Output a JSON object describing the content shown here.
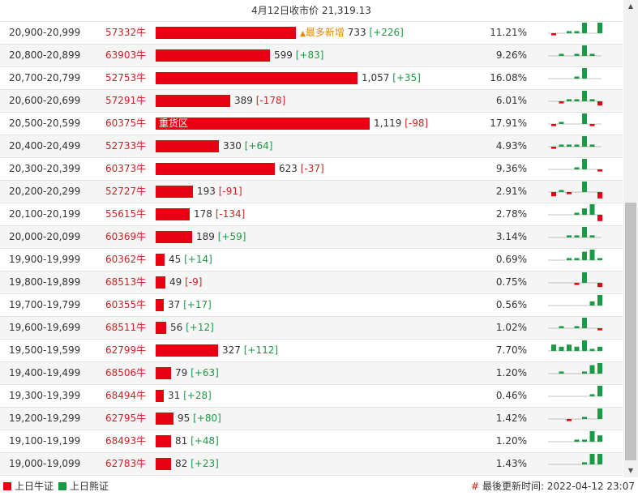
{
  "header": {
    "title": "4月12日收市价 21,319.13"
  },
  "colors": {
    "bull": "#e60012",
    "bear": "#1a9a45",
    "newest": "#e58a00"
  },
  "rows": [
    {
      "range": "20,900-20,999",
      "code": "57332牛",
      "value": 733,
      "value_text": "733",
      "change": "[+226]",
      "change_dir": "up",
      "pct": "11.21%",
      "tag": "最多新增",
      "tag_icon": "▲",
      "spark": [
        -1,
        0,
        1,
        1,
        5,
        0,
        5
      ]
    },
    {
      "range": "20,800-20,899",
      "code": "63903牛",
      "value": 599,
      "value_text": "599",
      "change": "[+83]",
      "change_dir": "up",
      "pct": "9.26%",
      "spark": [
        0,
        1,
        0,
        1,
        5,
        1,
        0
      ]
    },
    {
      "range": "20,700-20,799",
      "code": "52753牛",
      "value": 1057,
      "value_text": "1,057",
      "change": "[+35]",
      "change_dir": "up",
      "pct": "16.08%",
      "spark": [
        0,
        0,
        0,
        1,
        5,
        0,
        0
      ]
    },
    {
      "range": "20,600-20,699",
      "code": "57291牛",
      "value": 389,
      "value_text": "389",
      "change": "[-178]",
      "change_dir": "down",
      "pct": "6.01%",
      "spark": [
        0,
        -1,
        1,
        1,
        5,
        1,
        -2
      ]
    },
    {
      "range": "20,500-20,599",
      "code": "60375牛",
      "value": 1119,
      "value_text": "1,119",
      "change": "[-98]",
      "change_dir": "down",
      "pct": "17.91%",
      "inner_label": "重货区",
      "spark": [
        -1,
        1,
        0,
        0,
        5,
        -1,
        0
      ]
    },
    {
      "range": "20,400-20,499",
      "code": "52733牛",
      "value": 330,
      "value_text": "330",
      "change": "[+64]",
      "change_dir": "up",
      "pct": "4.93%",
      "spark": [
        -1,
        1,
        1,
        1,
        5,
        1,
        0
      ]
    },
    {
      "range": "20,300-20,399",
      "code": "60373牛",
      "value": 623,
      "value_text": "623",
      "change": "[-37]",
      "change_dir": "down",
      "pct": "9.36%",
      "spark": [
        0,
        0,
        0,
        1,
        5,
        0,
        -1
      ]
    },
    {
      "range": "20,200-20,299",
      "code": "52727牛",
      "value": 193,
      "value_text": "193",
      "change": "[-91]",
      "change_dir": "down",
      "pct": "2.91%",
      "spark": [
        -2,
        1,
        -1,
        0,
        5,
        0,
        -3
      ]
    },
    {
      "range": "20,100-20,199",
      "code": "55615牛",
      "value": 178,
      "value_text": "178",
      "change": "[-134]",
      "change_dir": "down",
      "pct": "2.78%",
      "spark": [
        0,
        0,
        0,
        1,
        3,
        5,
        -3
      ]
    },
    {
      "range": "20,000-20,099",
      "code": "60369牛",
      "value": 189,
      "value_text": "189",
      "change": "[+59]",
      "change_dir": "up",
      "pct": "3.14%",
      "spark": [
        0,
        0,
        1,
        1,
        5,
        1,
        0
      ]
    },
    {
      "range": "19,900-19,999",
      "code": "60362牛",
      "value": 45,
      "value_text": "45",
      "change": "[+14]",
      "change_dir": "up",
      "pct": "0.69%",
      "spark": [
        0,
        0,
        1,
        1,
        4,
        5,
        1
      ]
    },
    {
      "range": "19,800-19,899",
      "code": "68513牛",
      "value": 49,
      "value_text": "49",
      "change": "[-9]",
      "change_dir": "down",
      "pct": "0.75%",
      "spark": [
        0,
        0,
        0,
        -1,
        5,
        0,
        -2
      ]
    },
    {
      "range": "19,700-19,799",
      "code": "60355牛",
      "value": 37,
      "value_text": "37",
      "change": "[+17]",
      "change_dir": "up",
      "pct": "0.56%",
      "spark": [
        0,
        0,
        0,
        0,
        0,
        2,
        5
      ]
    },
    {
      "range": "19,600-19,699",
      "code": "68511牛",
      "value": 56,
      "value_text": "56",
      "change": "[+12]",
      "change_dir": "up",
      "pct": "1.02%",
      "spark": [
        0,
        1,
        0,
        1,
        5,
        0,
        -1
      ]
    },
    {
      "range": "19,500-19,599",
      "code": "62799牛",
      "value": 327,
      "value_text": "327",
      "change": "[+112]",
      "change_dir": "up",
      "pct": "7.70%",
      "spark": [
        3,
        2,
        3,
        2,
        5,
        1,
        2
      ]
    },
    {
      "range": "19,400-19,499",
      "code": "68506牛",
      "value": 79,
      "value_text": "79",
      "change": "[+63]",
      "change_dir": "up",
      "pct": "1.20%",
      "spark": [
        0,
        1,
        0,
        0,
        1,
        4,
        5
      ]
    },
    {
      "range": "19,300-19,399",
      "code": "68494牛",
      "value": 31,
      "value_text": "31",
      "change": "[+28]",
      "change_dir": "up",
      "pct": "0.46%",
      "spark": [
        0,
        0,
        0,
        0,
        0,
        1,
        5
      ]
    },
    {
      "range": "19,200-19,299",
      "code": "62795牛",
      "value": 95,
      "value_text": "95",
      "change": "[+80]",
      "change_dir": "up",
      "pct": "1.42%",
      "spark": [
        0,
        0,
        -1,
        0,
        1,
        0,
        5
      ]
    },
    {
      "range": "19,100-19,199",
      "code": "68493牛",
      "value": 81,
      "value_text": "81",
      "change": "[+48]",
      "change_dir": "up",
      "pct": "1.20%",
      "spark": [
        0,
        0,
        0,
        1,
        1,
        5,
        3
      ]
    },
    {
      "range": "19,000-19,099",
      "code": "62783牛",
      "value": 82,
      "value_text": "82",
      "change": "[+23]",
      "change_dir": "up",
      "pct": "1.43%",
      "spark": [
        0,
        0,
        0,
        0,
        1,
        5,
        5
      ]
    }
  ],
  "scale_max": 1119,
  "footer": {
    "legend_bull": "上日牛证",
    "legend_bear": "上日熊证",
    "updated_mark": "#",
    "updated": "最後更新时间: 2022-04-12 23:07"
  }
}
